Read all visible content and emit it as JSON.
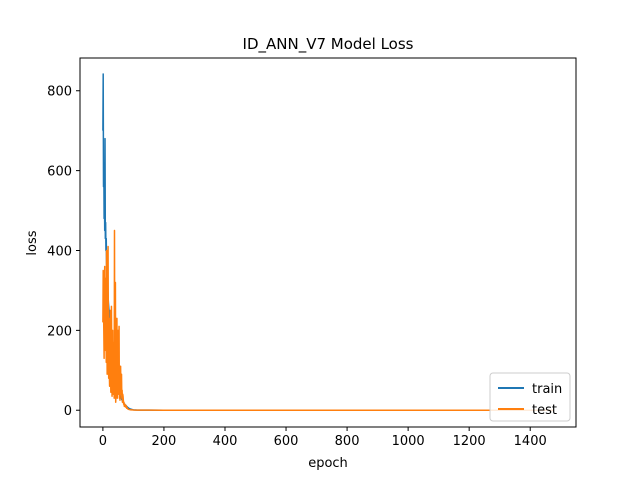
{
  "chart_data": {
    "type": "line",
    "title": "ID_ANN_V7 Model Loss",
    "xlabel": "epoch",
    "ylabel": "loss",
    "xlim": [
      -75,
      1550
    ],
    "ylim": [
      -42,
      882
    ],
    "xticks": [
      0,
      200,
      400,
      600,
      800,
      1000,
      1200,
      1400
    ],
    "yticks": [
      0,
      200,
      400,
      600,
      800
    ],
    "grid": false,
    "legend_position": "lower right",
    "series": [
      {
        "name": "train",
        "color": "#1f77b4",
        "x": [
          0,
          1,
          2,
          3,
          4,
          5,
          6,
          7,
          8,
          9,
          10,
          11,
          12,
          14,
          16,
          18,
          20,
          22,
          25,
          28,
          31,
          34,
          37,
          40,
          44,
          48,
          52,
          56,
          60,
          65,
          70,
          75,
          80,
          85,
          90,
          95,
          100,
          110,
          120,
          150,
          200,
          300,
          500,
          800,
          1100,
          1400,
          1475
        ],
        "values": [
          700,
          842,
          560,
          620,
          480,
          540,
          450,
          680,
          430,
          470,
          400,
          430,
          360,
          320,
          300,
          270,
          250,
          220,
          190,
          160,
          140,
          110,
          95,
          80,
          65,
          55,
          45,
          38,
          30,
          22,
          16,
          12,
          8,
          5,
          3,
          2,
          1,
          0.5,
          0.3,
          0.2,
          0.1,
          0.1,
          0.1,
          0.1,
          0.1,
          0.1,
          0.1
        ]
      },
      {
        "name": "test",
        "color": "#ff7f0e",
        "x": [
          0,
          1,
          2,
          3,
          4,
          5,
          6,
          7,
          8,
          9,
          10,
          11,
          12,
          13,
          14,
          15,
          16,
          17,
          18,
          19,
          20,
          21,
          22,
          23,
          24,
          25,
          26,
          27,
          28,
          29,
          30,
          31,
          32,
          33,
          34,
          35,
          36,
          37,
          38,
          39,
          40,
          41,
          42,
          43,
          44,
          45,
          46,
          47,
          48,
          49,
          50,
          51,
          52,
          53,
          54,
          55,
          56,
          57,
          58,
          59,
          60,
          61,
          62,
          63,
          64,
          65,
          66,
          67,
          68,
          69,
          70,
          72,
          74,
          76,
          78,
          80,
          82,
          85,
          88,
          92,
          96,
          100,
          110,
          120,
          150,
          200,
          300,
          500,
          800,
          1100,
          1400,
          1475
        ],
        "values": [
          220,
          350,
          260,
          200,
          130,
          280,
          360,
          180,
          150,
          330,
          250,
          120,
          400,
          200,
          90,
          300,
          370,
          410,
          160,
          80,
          230,
          100,
          60,
          180,
          250,
          120,
          45,
          70,
          260,
          140,
          35,
          90,
          200,
          60,
          40,
          120,
          170,
          30,
          450,
          40,
          200,
          320,
          20,
          60,
          130,
          40,
          230,
          30,
          110,
          150,
          200,
          40,
          60,
          210,
          30,
          80,
          25,
          60,
          110,
          50,
          40,
          90,
          30,
          50,
          20,
          40,
          35,
          25,
          15,
          20,
          10,
          15,
          8,
          12,
          5,
          6,
          3,
          2,
          1.5,
          1,
          0.8,
          0.5,
          0.3,
          0.2,
          0.2,
          0.1,
          0.1,
          0.1,
          0.1,
          0.1,
          0.1,
          0.1
        ]
      }
    ]
  }
}
